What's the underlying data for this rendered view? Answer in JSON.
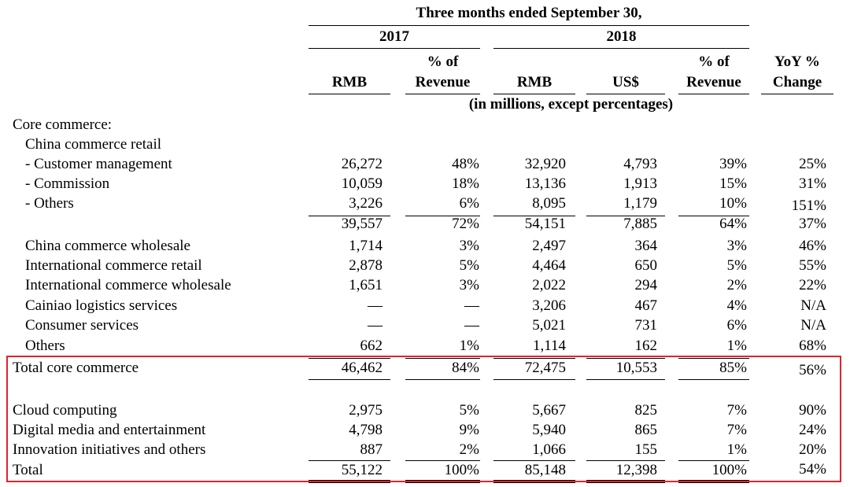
{
  "header": {
    "period": "Three months ended September 30,",
    "year_2017": "2017",
    "year_2018": "2018",
    "col_rmb_2017": "RMB",
    "col_pct_2017_l1": "% of",
    "col_pct_2017_l2": "Revenue",
    "col_rmb_2018": "RMB",
    "col_usd_2018": "US$",
    "col_pct_2018_l1": "% of",
    "col_pct_2018_l2": "Revenue",
    "col_yoy_l1": "YoY %",
    "col_yoy_l2": "Change",
    "units": "(in millions, except percentages)"
  },
  "rows": [
    {
      "label": "Core commerce:",
      "values": [
        "",
        "",
        "",
        "",
        "",
        ""
      ]
    },
    {
      "label": "China commerce retail",
      "values": [
        "",
        "",
        "",
        "",
        "",
        ""
      ]
    },
    {
      "label": "- Customer management",
      "values": [
        "26,272",
        "48%",
        "32,920",
        "4,793",
        "39%",
        "25%"
      ]
    },
    {
      "label": "- Commission",
      "values": [
        "10,059",
        "18%",
        "13,136",
        "1,913",
        "15%",
        "31%"
      ]
    },
    {
      "label": "- Others",
      "values": [
        "3,226",
        "6%",
        "8,095",
        "1,179",
        "10%",
        "151%"
      ]
    },
    {
      "label": "",
      "values": [
        "39,557",
        "72%",
        "54,151",
        "7,885",
        "64%",
        "37%"
      ]
    },
    {
      "label": "China commerce wholesale",
      "values": [
        "1,714",
        "3%",
        "2,497",
        "364",
        "3%",
        "46%"
      ]
    },
    {
      "label": "International commerce retail",
      "values": [
        "2,878",
        "5%",
        "4,464",
        "650",
        "5%",
        "55%"
      ]
    },
    {
      "label": "International commerce wholesale",
      "values": [
        "1,651",
        "3%",
        "2,022",
        "294",
        "2%",
        "22%"
      ]
    },
    {
      "label": "Cainiao logistics services",
      "values": [
        "—",
        "—",
        "3,206",
        "467",
        "4%",
        "N/A"
      ]
    },
    {
      "label": "Consumer services",
      "values": [
        "—",
        "—",
        "5,021",
        "731",
        "6%",
        "N/A"
      ]
    },
    {
      "label": "Others",
      "values": [
        "662",
        "1%",
        "1,114",
        "162",
        "1%",
        "68%"
      ]
    },
    {
      "label": "Total core commerce",
      "values": [
        "46,462",
        "84%",
        "72,475",
        "10,553",
        "85%",
        "56%"
      ]
    },
    {
      "label": "Cloud computing",
      "values": [
        "2,975",
        "5%",
        "5,667",
        "825",
        "7%",
        "90%"
      ]
    },
    {
      "label": "Digital media and entertainment",
      "values": [
        "4,798",
        "9%",
        "5,940",
        "865",
        "7%",
        "24%"
      ]
    },
    {
      "label": "Innovation initiatives and others",
      "values": [
        "887",
        "2%",
        "1,066",
        "155",
        "1%",
        "20%"
      ]
    },
    {
      "label": "Total",
      "values": [
        "55,122",
        "100%",
        "85,148",
        "12,398",
        "100%",
        "54%"
      ]
    }
  ],
  "highlight_color": "#e0242f"
}
